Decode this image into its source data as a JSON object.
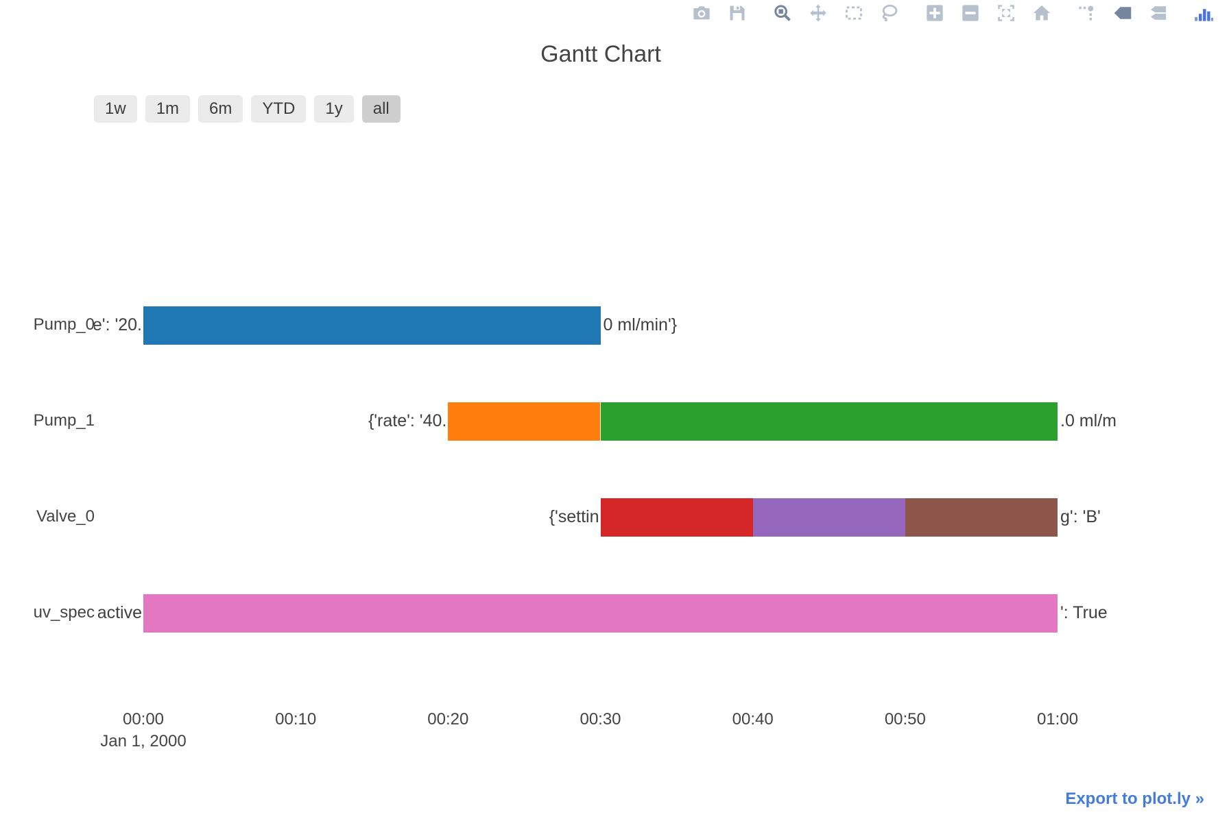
{
  "title": "Gantt Chart",
  "export_label": "Export to plot.ly »",
  "colors": {
    "blue": "#1f77b4",
    "orange": "#ff7f0e",
    "green": "#2ca02c",
    "red": "#d62728",
    "purple": "#9467bd",
    "brown": "#8c564b",
    "pink": "#e377c2",
    "icon": "#b7c0cd",
    "icon_active": "#74869f",
    "logo_blue": "#4a74d9",
    "button_bg": "#ebebeb",
    "button_active_bg": "#cfcfcf",
    "link": "#447bdc",
    "text": "#444444"
  },
  "range_buttons": [
    {
      "label": "1w",
      "active": false
    },
    {
      "label": "1m",
      "active": false
    },
    {
      "label": "6m",
      "active": false
    },
    {
      "label": "YTD",
      "active": false
    },
    {
      "label": "1y",
      "active": false
    },
    {
      "label": "all",
      "active": true
    }
  ],
  "modebar": {
    "groups": [
      [
        {
          "icon": "camera",
          "active": false
        },
        {
          "icon": "save",
          "active": false
        }
      ],
      [
        {
          "icon": "zoom",
          "active": true
        },
        {
          "icon": "pan",
          "active": false
        },
        {
          "icon": "box-select",
          "active": false
        },
        {
          "icon": "lasso",
          "active": false
        }
      ],
      [
        {
          "icon": "zoom-in",
          "active": false
        },
        {
          "icon": "zoom-out",
          "active": false
        },
        {
          "icon": "autoscale",
          "active": false
        },
        {
          "icon": "reset-home",
          "active": false
        }
      ],
      [
        {
          "icon": "spikelines",
          "active": false
        },
        {
          "icon": "hover-closest",
          "active": true
        },
        {
          "icon": "hover-compare",
          "active": false
        }
      ],
      [
        {
          "icon": "plotly-logo",
          "active": false
        }
      ]
    ]
  },
  "rows": [
    {
      "label": "Pump_0",
      "frag_left": "e': '20.",
      "frag_right": "0 ml/min'}",
      "bars": [
        {
          "color": "#1f77b4",
          "start_min": 0,
          "end_min": 30
        }
      ]
    },
    {
      "label": "Pump_1",
      "frag_left": "{'rate': '40.",
      "frag_right": ".0 ml/m",
      "bars": [
        {
          "color": "#ff7f0e",
          "start_min": 20,
          "end_min": 30
        },
        {
          "color": "#2ca02c",
          "start_min": 30,
          "end_min": 60
        }
      ]
    },
    {
      "label": "Valve_0",
      "frag_left": "{'settin",
      "frag_right": "g': 'B'",
      "bars": [
        {
          "color": "#d62728",
          "start_min": 30,
          "end_min": 40
        },
        {
          "color": "#9467bd",
          "start_min": 40,
          "end_min": 50
        },
        {
          "color": "#8c564b",
          "start_min": 50,
          "end_min": 60
        }
      ]
    },
    {
      "label": "uv_spec",
      "frag_left": "active",
      "frag_right": "': True",
      "bars": [
        {
          "color": "#e377c2",
          "start_min": 0,
          "end_min": 60
        }
      ]
    }
  ],
  "xaxis": {
    "ticks": [
      {
        "label": "00:00",
        "minute": 0
      },
      {
        "label": "00:10",
        "minute": 10
      },
      {
        "label": "00:20",
        "minute": 20
      },
      {
        "label": "00:30",
        "minute": 30
      },
      {
        "label": "00:40",
        "minute": 40
      },
      {
        "label": "00:50",
        "minute": 50
      },
      {
        "label": "01:00",
        "minute": 60
      }
    ],
    "date_label": "Jan 1, 2000"
  },
  "chart_data": {
    "type": "gantt",
    "title": "Gantt Chart",
    "x": {
      "tick_labels": [
        "00:00",
        "00:10",
        "00:20",
        "00:30",
        "00:40",
        "00:50",
        "01:00"
      ],
      "date_label": "Jan 1, 2000",
      "range_minutes": [
        0,
        60
      ],
      "grid": false
    },
    "resources_top_to_bottom": [
      "Pump_0",
      "Pump_1",
      "Valve_0",
      "uv_spec"
    ],
    "tasks": [
      {
        "resource": "Pump_0",
        "start": "00:00",
        "finish": "00:30",
        "color": "#1f77b4"
      },
      {
        "resource": "Pump_1",
        "start": "00:20",
        "finish": "00:30",
        "color": "#ff7f0e"
      },
      {
        "resource": "Pump_1",
        "start": "00:30",
        "finish": "01:00",
        "color": "#2ca02c"
      },
      {
        "resource": "Valve_0",
        "start": "00:30",
        "finish": "00:40",
        "color": "#d62728"
      },
      {
        "resource": "Valve_0",
        "start": "00:40",
        "finish": "00:50",
        "color": "#9467bd"
      },
      {
        "resource": "Valve_0",
        "start": "00:50",
        "finish": "01:00",
        "color": "#8c564b"
      },
      {
        "resource": "uv_spec",
        "start": "00:00",
        "finish": "01:00",
        "color": "#e377c2"
      }
    ],
    "visible_annotation_fragments": [
      {
        "resource": "Pump_0",
        "left_of_bars": "e': '20.",
        "right_of_bars": "0 ml/min'}"
      },
      {
        "resource": "Pump_1",
        "left_of_bars": "{'rate': '40.",
        "right_of_bars": ".0 ml/m"
      },
      {
        "resource": "Valve_0",
        "left_of_bars": "{'settin",
        "right_of_bars": "g': 'B'"
      },
      {
        "resource": "uv_spec",
        "left_of_bars": "active",
        "right_of_bars": "': True"
      }
    ],
    "legend": {
      "shown": false
    }
  }
}
